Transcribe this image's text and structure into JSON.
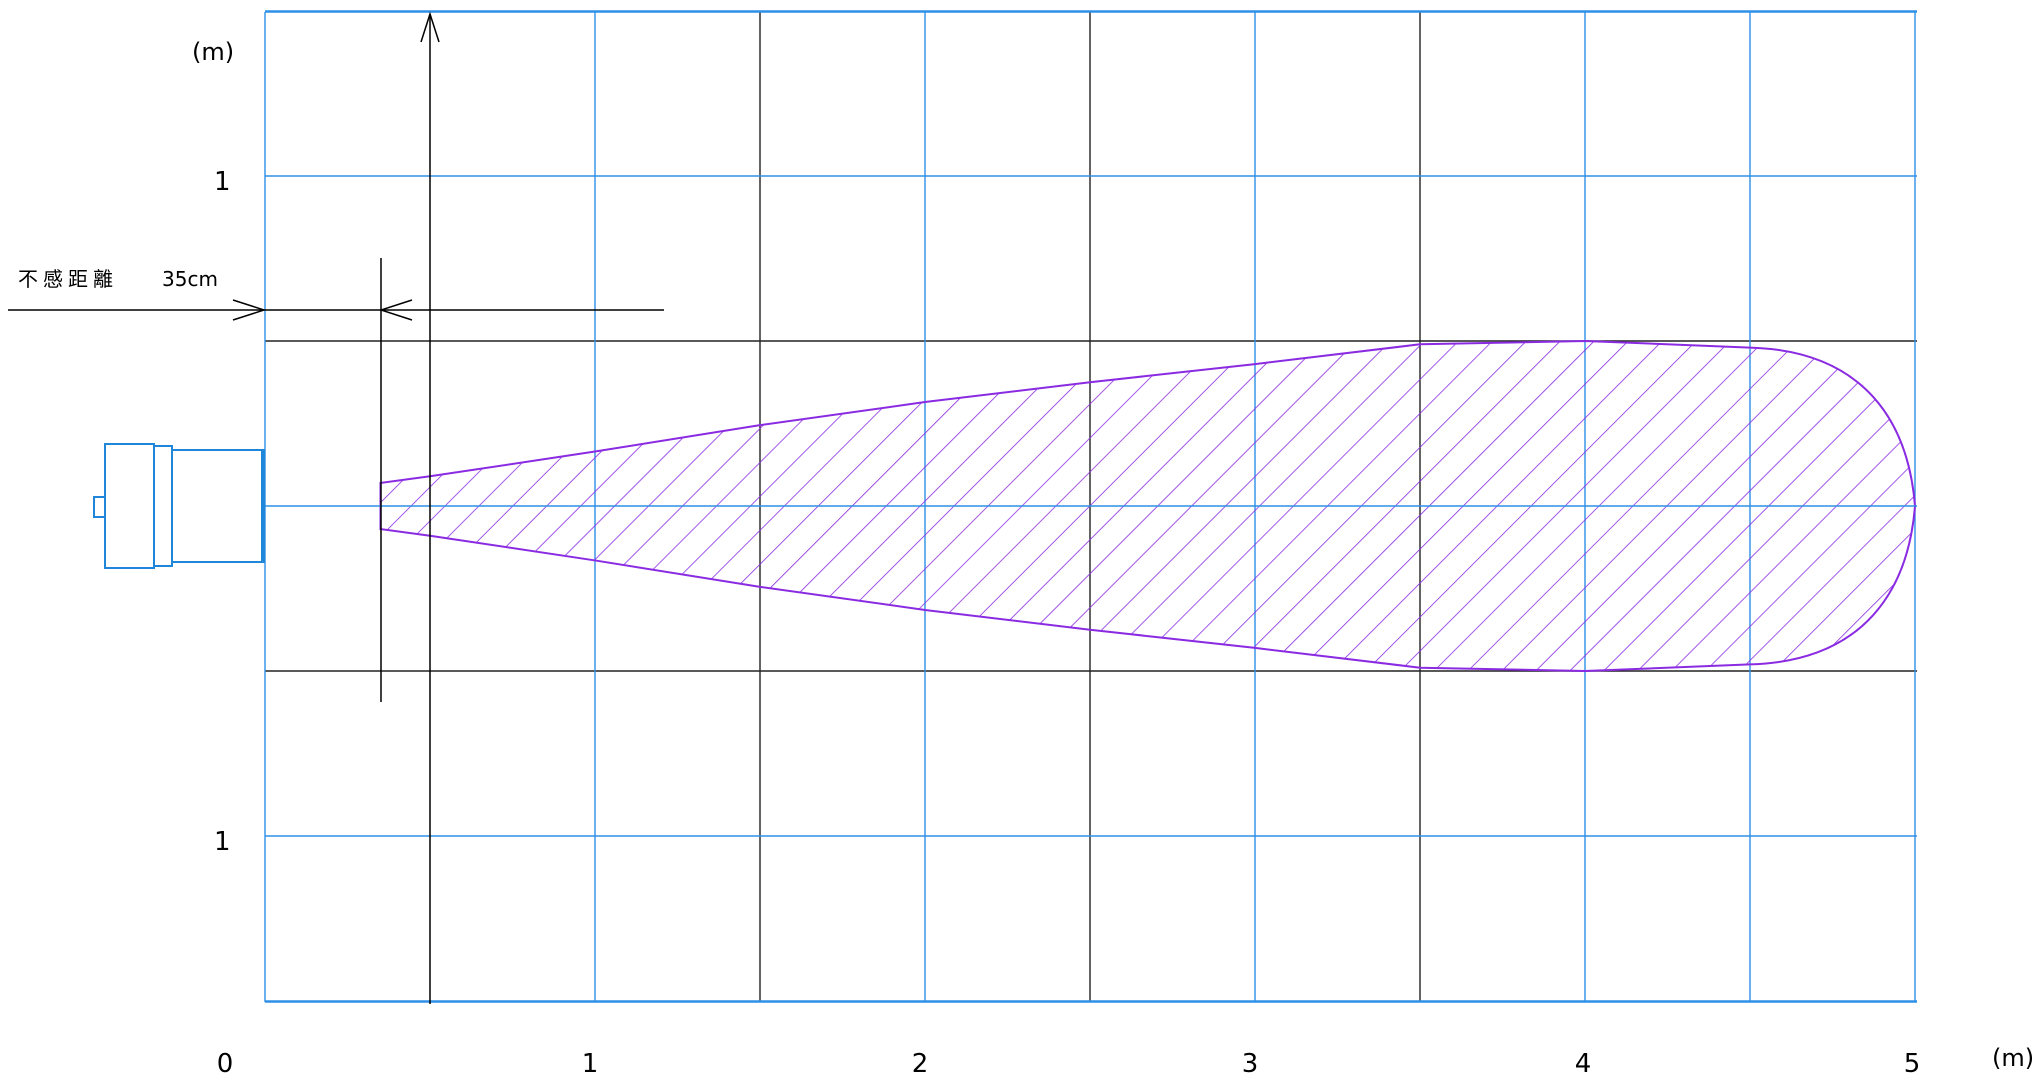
{
  "axis": {
    "unit_y": "(m)",
    "unit_x": "(m)",
    "y_tick_upper": "1",
    "y_tick_lower": "1",
    "x_ticks": [
      "0",
      "1",
      "2",
      "3",
      "4",
      "5"
    ]
  },
  "dead_zone": {
    "label": "不感距離",
    "value": "35cm",
    "distance_m": 0.35
  },
  "detection_area": {
    "max_range_m": 5.0,
    "half_width_m": 0.5,
    "start_m": 0.35,
    "start_half_width_m": 0.07,
    "widest_at_m": 4.0
  },
  "colors": {
    "grid_blue": "#2f8fe6",
    "grid_black": "#222222",
    "area_purple": "#8a2be2",
    "sensor_blue": "#1f86d9",
    "text": "#000000"
  }
}
